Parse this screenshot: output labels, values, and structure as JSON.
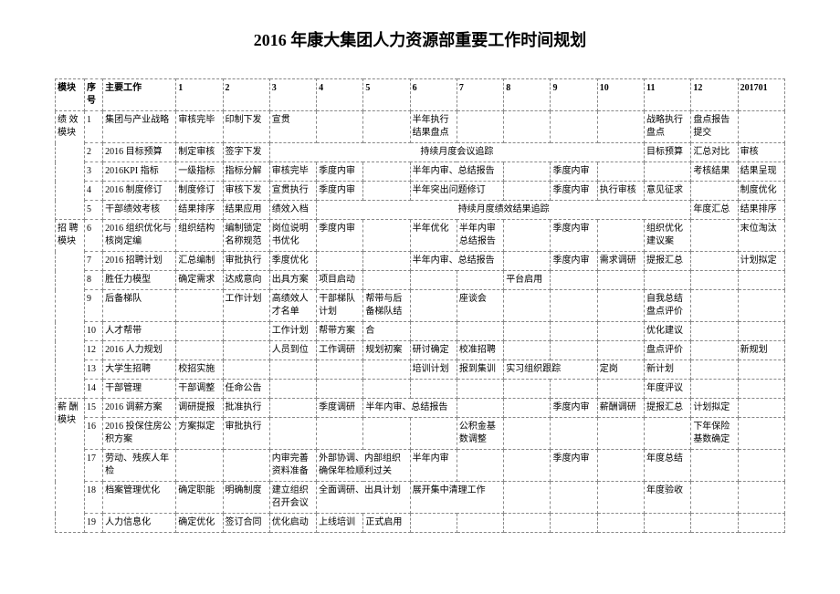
{
  "title": "2016 年康大集团人力资源部重要工作时间规划",
  "headers": {
    "module": "模块",
    "seq": "序号",
    "task": "主要工作",
    "m1": "1",
    "m2": "2",
    "m3": "3",
    "m4": "4",
    "m5": "5",
    "m6": "6",
    "m7": "7",
    "m8": "8",
    "m9": "9",
    "m10": "10",
    "m11": "11",
    "m12": "12",
    "m13": "201701"
  },
  "modules": {
    "mod1": "绩 效模块",
    "mod2": "招 聘模块",
    "mod3": "薪 酬模块"
  },
  "rows": {
    "r1": {
      "seq": "1",
      "task": "集团与产业战略",
      "c1": "审核完毕",
      "c2": "印制下发",
      "c3": "宣贯",
      "c4": "",
      "c5": "",
      "c6": "半年执行结果盘点",
      "c7": "",
      "c8": "",
      "c9": "",
      "c10": "",
      "c11": "战略执行盘点",
      "c12": "盘点报告提交",
      "c13": ""
    },
    "r2": {
      "seq": "2",
      "task": "2016 目标预算",
      "c1": "制定审核",
      "c2": "签字下发",
      "c3_11": "持续月度会议追踪",
      "c12": "目标预算",
      "c13_a": "汇总对比",
      "c13_b": "审核"
    },
    "r3": {
      "seq": "3",
      "task": "2016KPI 指标",
      "c1": "一级指标",
      "c2": "指标分解",
      "c3": "审核完毕",
      "c4": "季度内审",
      "c5": "",
      "c6": "半年内审、总结报告",
      "c7": "",
      "c8": "",
      "c9": "季度内审",
      "c10": "",
      "c11": "",
      "c12": "考核结果",
      "c13": "结果呈现"
    },
    "r4": {
      "seq": "4",
      "task": "2016 制度修订",
      "c1": "制度修订",
      "c2": "审核下发",
      "c3": "宣贯执行",
      "c4": "季度内审",
      "c5": "",
      "c6": "半年突出问题修订",
      "c7": "",
      "c8": "",
      "c9": "季度内审",
      "c10": "执行审核",
      "c11": "意见征求",
      "c12": "",
      "c13": "制度优化"
    },
    "r5": {
      "seq": "5",
      "task": "干部绩效考核",
      "c1": "结果排序",
      "c2": "结果应用",
      "c3": "绩效入档",
      "c4_11": "持续月度绩效结果追踪",
      "c12": "年度汇总",
      "c13": "结果排序"
    },
    "r6": {
      "seq": "6",
      "task": "2016 组织优化与核岗定编",
      "c1": "组织结构",
      "c2": "编制锁定名称规范",
      "c3": "岗位说明书优化",
      "c4": "季度内审",
      "c5": "",
      "c6": "半年优化",
      "c7": "半年内审总结报告",
      "c8": "",
      "c9": "季度内审",
      "c10": "",
      "c11": "组织优化建议案",
      "c12": "",
      "c13": "末位淘汰"
    },
    "r7": {
      "seq": "7",
      "task": "2016 招聘计划",
      "c1": "汇总编制",
      "c2": "审批执行",
      "c3": "季度优化",
      "c4": "",
      "c5": "",
      "c6": "半年内审、总结报告",
      "c7": "",
      "c8": "",
      "c9": "季度内审",
      "c10": "需求调研",
      "c11": "提报汇总",
      "c12": "",
      "c13": "计划拟定"
    },
    "r8": {
      "seq": "8",
      "task": "胜任力模型",
      "c1": "确定需求",
      "c2": "达成意向",
      "c3": "出具方案",
      "c4": "项目启动",
      "c5": "",
      "c6": "",
      "c7": "",
      "c8": "平台启用",
      "c9": "",
      "c10": "",
      "c11": "",
      "c12": "",
      "c13": ""
    },
    "r9": {
      "seq": "9",
      "task": "后备梯队",
      "c1": "",
      "c2": "工作计划",
      "c3": "高绩效人才名单",
      "c4": "干部梯队计划",
      "c5": "帮带与后备梯队结",
      "c6": "",
      "c7": "座谈会",
      "c8": "",
      "c9": "",
      "c10": "",
      "c11": "自我总结盘点评价",
      "c12": "",
      "c13": ""
    },
    "r10": {
      "seq": "10",
      "task": "人才帮带",
      "c1": "",
      "c2": "",
      "c3": "工作计划",
      "c4": "帮带方案",
      "c5": "合",
      "c6": "",
      "c7": "",
      "c8": "",
      "c9": "",
      "c10": "",
      "c11": "优化建议",
      "c12": "",
      "c13": ""
    },
    "r12": {
      "seq": "12",
      "task": "2016 人力规划",
      "c1": "",
      "c2": "",
      "c3": "人员到位",
      "c4": "工作调研",
      "c5": "规划初案",
      "c6": "研讨确定",
      "c7": "校准招聘",
      "c8": "",
      "c9": "",
      "c10": "",
      "c11": "盘点评价",
      "c12": "",
      "c13": "新规划"
    },
    "r13": {
      "seq": "13",
      "task": "大学生招聘",
      "c1": "校招实施",
      "c2": "",
      "c3": "",
      "c4": "",
      "c5": "",
      "c6": "培训计划",
      "c7": "报到集训",
      "c8": "实习组织跟踪",
      "c9": "",
      "c10": "定岗",
      "c11": "新计划",
      "c12": "",
      "c13": ""
    },
    "r14": {
      "seq": "14",
      "task": "干部管理",
      "c1": "干部调整",
      "c2": "任命公告",
      "c3": "",
      "c4": "",
      "c5": "",
      "c6": "",
      "c7": "",
      "c8": "",
      "c9": "",
      "c10": "",
      "c11": "年度评议",
      "c12": "",
      "c13": ""
    },
    "r15": {
      "seq": "15",
      "task": "2016 调薪方案",
      "c1": "调研提报",
      "c2": "批准执行",
      "c3": "",
      "c4": "季度调研",
      "c5": "半年内审、总结报告",
      "c6": "",
      "c7": "",
      "c8": "",
      "c9": "季度内审",
      "c10": "薪酬调研",
      "c11": "提报汇总",
      "c12": "计划拟定",
      "c13": ""
    },
    "r16": {
      "seq": "16",
      "task": "2016 投保住房公积方案",
      "c1": "方案拟定",
      "c2": "审批执行",
      "c3": "",
      "c4": "",
      "c5": "",
      "c6": "",
      "c7": "公积金基数调整",
      "c8": "",
      "c9": "",
      "c10": "",
      "c11": "",
      "c12": "下年保险基数确定",
      "c13": ""
    },
    "r17": {
      "seq": "17",
      "task": "劳动、残疾人年检",
      "c1": "",
      "c2": "",
      "c3": "内审完善资料准备",
      "c4": "外部协调、内部组织确保年检顺利过关",
      "c5": "",
      "c6": "半年内审",
      "c7": "",
      "c8": "",
      "c9": "季度内审",
      "c10": "",
      "c11": "年度总结",
      "c12": "",
      "c13": ""
    },
    "r18": {
      "seq": "18",
      "task": "档案管理优化",
      "c1": "确定职能",
      "c2": "明确制度",
      "c3": "建立组织召开会议",
      "c4": "全面调研、出具计划",
      "c5": "",
      "c6": "展开集中清理工作",
      "c7": "",
      "c8": "",
      "c9": "",
      "c10": "",
      "c11": "年度验收",
      "c12": "",
      "c13": ""
    },
    "r19": {
      "seq": "19",
      "task": "人力信息化",
      "c1": "确定优化",
      "c2": "签订合同",
      "c3": "优化启动",
      "c4": "上线培训",
      "c5": "正式启用",
      "c6": "",
      "c7": "",
      "c8": "",
      "c9": "",
      "c10": "",
      "c11": "",
      "c12": "",
      "c13": ""
    }
  }
}
